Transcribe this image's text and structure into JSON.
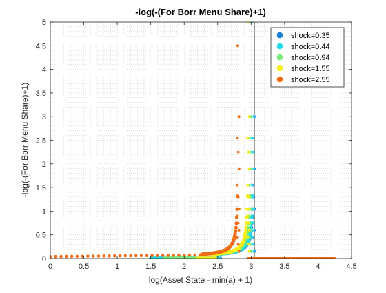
{
  "chart_data": {
    "type": "scatter",
    "title": "-log(-(For Borr Menu Share)+1)",
    "xlabel": "log(Asset State - min(a) + 1)",
    "ylabel": "-log(-(For Borr Menu Share)+1)",
    "xlim": [
      0,
      4.5
    ],
    "ylim": [
      0,
      5
    ],
    "xticks": [
      "0",
      "0.5",
      "1",
      "1.5",
      "2",
      "2.5",
      "3",
      "3.5",
      "4",
      "4.5"
    ],
    "yticks": [
      "0",
      "0.5",
      "1",
      "1.5",
      "2",
      "2.5",
      "3",
      "3.5",
      "4",
      "4.5",
      "5"
    ],
    "grid": "minor dotted",
    "legend_position": "top-right",
    "vertical_line_x": 3.05,
    "series": [
      {
        "name": "shock=0.35",
        "color": "#1a7fd6",
        "x_start": 1.5,
        "x_end": 2.05,
        "x_cutoff": 3.05,
        "y_cutoff_max": 5
      },
      {
        "name": "shock=0.44",
        "color": "#22dbe8",
        "x_start": 1.5,
        "x_end": 2.0,
        "x_cutoff": 3.04,
        "y_cutoff_max": 5
      },
      {
        "name": "shock=0.94",
        "color": "#77ea77",
        "x_start": 1.7,
        "x_end": 2.5,
        "x_cutoff": 3.0,
        "y_cutoff_max": 5
      },
      {
        "name": "shock=1.55",
        "color": "#f6ef16",
        "x_start": 2.2,
        "x_end": 2.95,
        "x_cutoff": 2.97,
        "y_cutoff_max": 5
      },
      {
        "name": "shock=2.55",
        "color": "#f26d12",
        "x_start": 0.0,
        "x_end": 2.8,
        "x_cutoff": 2.82,
        "y_cutoff_max": 4.5
      }
    ],
    "flat_segment": {
      "x_start": 2.95,
      "x_end": 4.25,
      "y": 0.0,
      "color": "#f26d12"
    }
  }
}
